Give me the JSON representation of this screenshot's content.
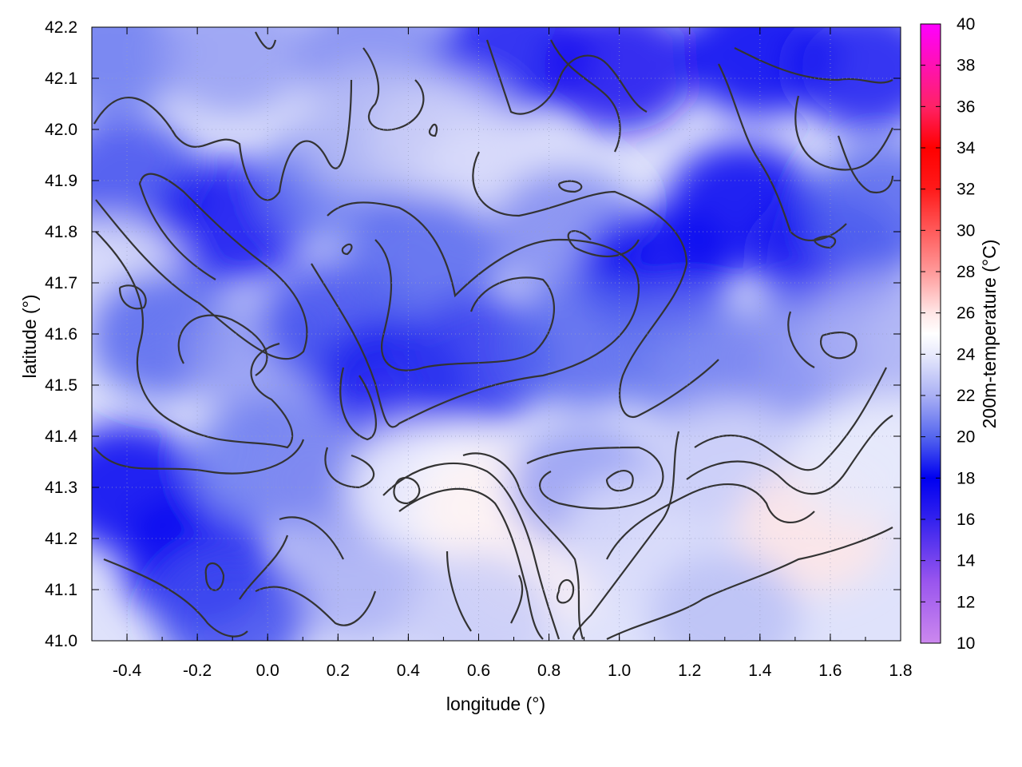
{
  "chart_data": {
    "type": "heatmap",
    "title": "",
    "xlabel": "longitude (°)",
    "ylabel": "latitude (°)",
    "colorbar_label": "200m-temperature (°C)",
    "xlim": [
      -0.5,
      1.8
    ],
    "ylim": [
      41.0,
      42.2
    ],
    "colorbar_range": [
      10,
      40
    ],
    "x_ticks": [
      -0.4,
      -0.2,
      0.0,
      0.2,
      0.4,
      0.6,
      0.8,
      1.0,
      1.2,
      1.4,
      1.6,
      1.8
    ],
    "x_tick_labels": [
      "-0.4",
      "-0.2",
      "0.0",
      "0.2",
      "0.4",
      "0.6",
      "0.8",
      "1.0",
      "1.2",
      "1.4",
      "1.6",
      "1.8"
    ],
    "y_ticks": [
      41.0,
      41.1,
      41.2,
      41.3,
      41.4,
      41.5,
      41.6,
      41.7,
      41.8,
      41.9,
      42.0,
      42.1,
      42.2
    ],
    "y_tick_labels": [
      "41.0",
      "41.1",
      "41.2",
      "41.3",
      "41.4",
      "41.5",
      "41.6",
      "41.7",
      "41.8",
      "41.9",
      "42.0",
      "42.1",
      "42.2"
    ],
    "colorbar_ticks": [
      10,
      12,
      14,
      16,
      18,
      20,
      22,
      24,
      26,
      28,
      30,
      32,
      34,
      36,
      38,
      40
    ],
    "colorbar_tick_labels": [
      "10",
      "12",
      "14",
      "16",
      "18",
      "20",
      "22",
      "24",
      "26",
      "28",
      "30",
      "32",
      "34",
      "36",
      "38",
      "40"
    ],
    "colormap": [
      {
        "value": 10,
        "color": "#cc88ee"
      },
      {
        "value": 13,
        "color": "#9955ee"
      },
      {
        "value": 16,
        "color": "#3322ee"
      },
      {
        "value": 18,
        "color": "#0000f0"
      },
      {
        "value": 20,
        "color": "#5566ee"
      },
      {
        "value": 22,
        "color": "#aab0f4"
      },
      {
        "value": 24,
        "color": "#e8eafc"
      },
      {
        "value": 25,
        "color": "#ffffff"
      },
      {
        "value": 26,
        "color": "#ffe6e6"
      },
      {
        "value": 28,
        "color": "#ff9999"
      },
      {
        "value": 32,
        "color": "#ff1a1a"
      },
      {
        "value": 34,
        "color": "#ff0000"
      },
      {
        "value": 36,
        "color": "#ff2266"
      },
      {
        "value": 40,
        "color": "#ff00ff"
      }
    ],
    "grid": true,
    "field_samples": [
      {
        "lon": -0.45,
        "lat": 42.15,
        "temp": 20.5
      },
      {
        "lon": -0.1,
        "lat": 42.15,
        "temp": 21.5
      },
      {
        "lon": 0.3,
        "lat": 42.15,
        "temp": 21.0
      },
      {
        "lon": 0.7,
        "lat": 42.15,
        "temp": 18.5
      },
      {
        "lon": 1.0,
        "lat": 42.12,
        "temp": 17.0
      },
      {
        "lon": 1.4,
        "lat": 42.15,
        "temp": 18.0
      },
      {
        "lon": 1.7,
        "lat": 42.12,
        "temp": 18.5
      },
      {
        "lon": -0.4,
        "lat": 41.9,
        "temp": 19.5
      },
      {
        "lon": -0.1,
        "lat": 41.82,
        "temp": 17.5
      },
      {
        "lon": 0.2,
        "lat": 41.9,
        "temp": 20.5
      },
      {
        "lon": 0.3,
        "lat": 42.0,
        "temp": 22.5
      },
      {
        "lon": 0.5,
        "lat": 41.98,
        "temp": 23.0
      },
      {
        "lon": 0.65,
        "lat": 41.9,
        "temp": 23.5
      },
      {
        "lon": 0.85,
        "lat": 41.8,
        "temp": 21.0
      },
      {
        "lon": 1.1,
        "lat": 41.72,
        "temp": 18.0
      },
      {
        "lon": 1.35,
        "lat": 41.85,
        "temp": 18.0
      },
      {
        "lon": 1.6,
        "lat": 41.75,
        "temp": 18.5
      },
      {
        "lon": 1.75,
        "lat": 41.85,
        "temp": 20.0
      },
      {
        "lon": -0.45,
        "lat": 41.7,
        "temp": 23.5
      },
      {
        "lon": -0.3,
        "lat": 41.6,
        "temp": 20.0
      },
      {
        "lon": 0.0,
        "lat": 41.55,
        "temp": 21.5
      },
      {
        "lon": 0.2,
        "lat": 41.62,
        "temp": 19.5
      },
      {
        "lon": 0.35,
        "lat": 41.5,
        "temp": 18.5
      },
      {
        "lon": 0.45,
        "lat": 41.75,
        "temp": 20.0
      },
      {
        "lon": 0.6,
        "lat": 41.55,
        "temp": 19.0
      },
      {
        "lon": 0.9,
        "lat": 41.58,
        "temp": 20.0
      },
      {
        "lon": 1.2,
        "lat": 41.55,
        "temp": 20.5
      },
      {
        "lon": 1.5,
        "lat": 41.55,
        "temp": 21.0
      },
      {
        "lon": 1.75,
        "lat": 41.6,
        "temp": 22.0
      },
      {
        "lon": -0.4,
        "lat": 41.3,
        "temp": 18.0
      },
      {
        "lon": -0.2,
        "lat": 41.15,
        "temp": 18.0
      },
      {
        "lon": 0.0,
        "lat": 41.35,
        "temp": 20.5
      },
      {
        "lon": 0.2,
        "lat": 41.3,
        "temp": 21.0
      },
      {
        "lon": 0.25,
        "lat": 41.12,
        "temp": 22.0
      },
      {
        "lon": 0.45,
        "lat": 41.3,
        "temp": 24.5
      },
      {
        "lon": 0.65,
        "lat": 41.25,
        "temp": 25.5
      },
      {
        "lon": 0.75,
        "lat": 41.15,
        "temp": 25.5
      },
      {
        "lon": 0.9,
        "lat": 41.3,
        "temp": 21.5
      },
      {
        "lon": 1.05,
        "lat": 41.2,
        "temp": 23.5
      },
      {
        "lon": 1.3,
        "lat": 41.35,
        "temp": 23.0
      },
      {
        "lon": 1.55,
        "lat": 41.22,
        "temp": 26.0
      },
      {
        "lon": 1.7,
        "lat": 41.35,
        "temp": 24.0
      },
      {
        "lon": 1.3,
        "lat": 41.05,
        "temp": 22.5
      },
      {
        "lon": 0.6,
        "lat": 41.05,
        "temp": 23.0
      },
      {
        "lon": -0.1,
        "lat": 41.05,
        "temp": 19.5
      }
    ]
  }
}
